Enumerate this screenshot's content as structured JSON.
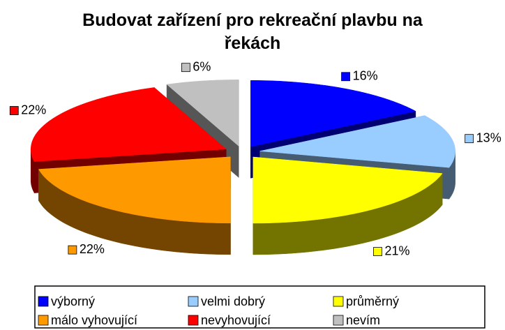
{
  "chart_data": {
    "type": "pie3d",
    "title": "Budovat zařízení pro rekreační plavbu na řekách",
    "categories": [
      "výborný",
      "velmi dobrý",
      "průměrný",
      "málo vyhovující",
      "nevyhovující",
      "nevím"
    ],
    "values": [
      16,
      13,
      21,
      22,
      22,
      6
    ],
    "value_labels": [
      "16%",
      "13%",
      "21%",
      "22%",
      "22%",
      "6%"
    ],
    "colors": [
      "#0000ff",
      "#99ccff",
      "#ffff00",
      "#ff9900",
      "#ff0000",
      "#c0c0c0"
    ],
    "legend": "bottom"
  }
}
